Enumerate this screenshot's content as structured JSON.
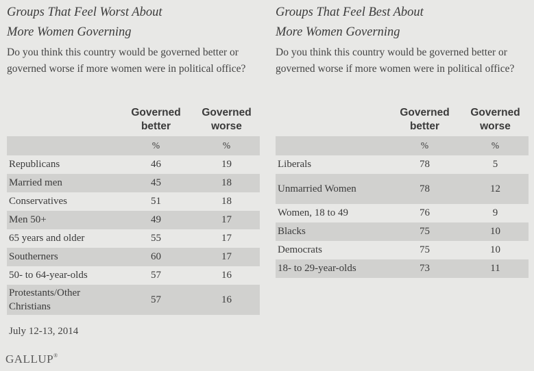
{
  "chart_data": [
    {
      "type": "table",
      "title": "Groups That Feel Worst About More Women Governing",
      "question": "Do you think this country would be governed better or governed worse if more women were in political office?",
      "columns": [
        "Governed better",
        "Governed worse"
      ],
      "units": [
        "%",
        "%"
      ],
      "rows": [
        {
          "label": "Republicans",
          "better": 46,
          "worse": 19
        },
        {
          "label": "Married men",
          "better": 45,
          "worse": 18
        },
        {
          "label": "Conservatives",
          "better": 51,
          "worse": 18
        },
        {
          "label": "Men 50+",
          "better": 49,
          "worse": 17
        },
        {
          "label": "65 years and older",
          "better": 55,
          "worse": 17
        },
        {
          "label": "Southerners",
          "better": 60,
          "worse": 17
        },
        {
          "label": "50- to 64-year-olds",
          "better": 57,
          "worse": 16
        },
        {
          "label": "Protestants/Other Christians",
          "better": 57,
          "worse": 16
        }
      ]
    },
    {
      "type": "table",
      "title": "Groups That Feel Best About More Women Governing",
      "question": "Do you think this country would be governed better or governed worse if more women were in political office?",
      "columns": [
        "Governed better",
        "Governed worse"
      ],
      "units": [
        "%",
        "%"
      ],
      "rows": [
        {
          "label": "Liberals",
          "better": 78,
          "worse": 5
        },
        {
          "label": "Unmarried Women",
          "better": 78,
          "worse": 12
        },
        {
          "label": "Women, 18 to 49",
          "better": 76,
          "worse": 9
        },
        {
          "label": "Blacks",
          "better": 75,
          "worse": 10
        },
        {
          "label": "Democrats",
          "better": 75,
          "worse": 10
        },
        {
          "label": "18- to 29-year-olds",
          "better": 73,
          "worse": 11
        }
      ]
    }
  ],
  "footer": {
    "date": "July 12-13, 2014",
    "source": "GALLUP"
  }
}
